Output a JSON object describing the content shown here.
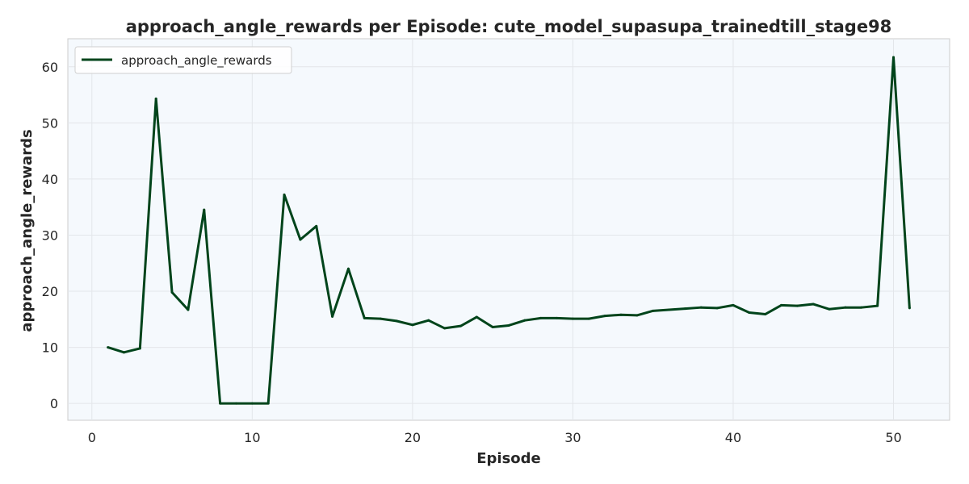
{
  "chart_data": {
    "type": "line",
    "title": "approach_angle_rewards per Episode: cute_model_supasupa_trainedtill_stage98",
    "xlabel": "Episode",
    "ylabel": "approach_angle_rewards",
    "xlim": [
      -1.5,
      53.5
    ],
    "ylim": [
      -3,
      65
    ],
    "x_ticks": [
      0,
      10,
      20,
      30,
      40,
      50
    ],
    "y_ticks": [
      0,
      10,
      20,
      30,
      40,
      50,
      60
    ],
    "grid": true,
    "legend_position": "top-left",
    "series": [
      {
        "name": "approach_angle_rewards",
        "color": "#00441b",
        "x": [
          1,
          2,
          3,
          4,
          5,
          6,
          7,
          8,
          9,
          10,
          11,
          12,
          13,
          14,
          15,
          16,
          17,
          18,
          19,
          20,
          21,
          22,
          23,
          24,
          25,
          26,
          27,
          28,
          29,
          30,
          31,
          32,
          33,
          34,
          35,
          36,
          37,
          38,
          39,
          40,
          41,
          42,
          43,
          44,
          45,
          46,
          47,
          48,
          49,
          50,
          51
        ],
        "values": [
          10.0,
          9.1,
          9.8,
          54.3,
          19.8,
          16.7,
          34.5,
          0.0,
          0.0,
          0.0,
          0.0,
          37.2,
          29.2,
          31.6,
          15.5,
          24.0,
          15.2,
          15.1,
          14.7,
          14.0,
          14.8,
          13.4,
          13.8,
          15.4,
          13.6,
          13.9,
          14.8,
          15.2,
          15.2,
          15.1,
          15.1,
          15.6,
          15.8,
          15.7,
          16.5,
          16.7,
          16.9,
          17.1,
          17.0,
          17.5,
          16.2,
          15.9,
          17.5,
          17.4,
          17.7,
          16.8,
          17.1,
          17.1,
          17.4,
          61.7,
          17.0
        ]
      }
    ]
  },
  "colors": {
    "plot_background": "#f5f9fd",
    "axes_edge": "#cccccc",
    "grid": "#e3e6ea"
  }
}
